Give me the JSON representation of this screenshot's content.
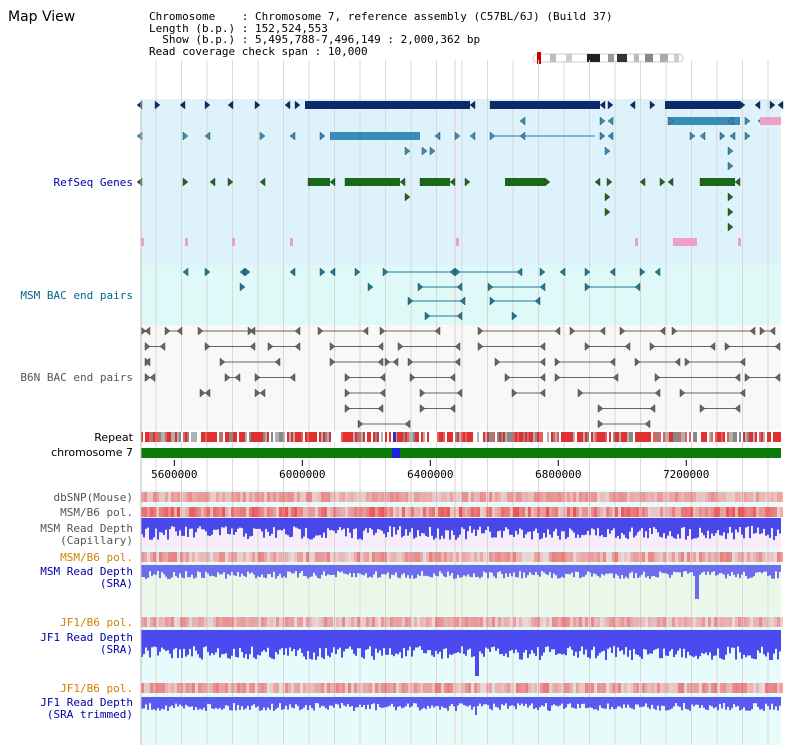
{
  "page": {
    "title": "Map View"
  },
  "info": {
    "chromosome_key": "Chromosome",
    "chromosome_value": "Chromosome 7, reference assembly (C57BL/6J) (Build 37)",
    "length_key": "Length (b.p.)",
    "length_value": "152,524,553",
    "show_key": "  Show (b.p.)",
    "show_value": "5,495,788-7,496,149 : 2,000,362 bp",
    "coverage_key": "Read coverage check span",
    "coverage_value": "10,000"
  },
  "view": {
    "start_bp": 5495788,
    "end_bp": 7496149
  },
  "ruler": {
    "ticks": [
      "5600000",
      "6000000",
      "6400000",
      "6800000",
      "7200000"
    ],
    "tick_values": [
      5600000,
      6000000,
      6400000,
      6800000,
      7200000
    ]
  },
  "tracks": {
    "refseq": {
      "label": "RefSeq Genes",
      "color": "#0000aa"
    },
    "msm_bac": {
      "label": "MSM BAC end pairs",
      "color": "#006688"
    },
    "b6n_bac": {
      "label": "B6N BAC end pairs",
      "color": "#555555"
    },
    "repeat": {
      "label": "Repeat"
    },
    "chromosome": {
      "label": "chromosome 7"
    },
    "dbsnp": {
      "label": "dbSNP(Mouse)"
    },
    "msm_pol1": {
      "label": "MSM/B6 pol."
    },
    "msm_cap": {
      "label_1": "MSM Read Depth",
      "label_2": "(Capillary)"
    },
    "msm_pol2": {
      "label": "MSM/B6 pol."
    },
    "msm_sra": {
      "label_1": "MSM Read Depth",
      "label_2": "(SRA)"
    },
    "jf1_pol1": {
      "label": "JF1/B6 pol."
    },
    "jf1_sra": {
      "label_1": "JF1 Read Depth",
      "label_2": "(SRA)"
    },
    "jf1_pol2": {
      "label": "JF1/B6 pol."
    },
    "jf1_trim": {
      "label_1": "JF1 Read Depth",
      "label_2": "(SRA trimmed)"
    }
  },
  "colors": {
    "refseq_bg": "#ddf2fb",
    "bac_bg": "#dff8f8",
    "b6n_bg": "#f8f8f8",
    "gene_dark": "#0a2a6a",
    "gene_mid": "#3a8cb8",
    "gene_green": "#1a6a1a",
    "gene_pink": "#f0a0c8",
    "msm_bac": "#1a7a9a",
    "b6n_bac": "#666666",
    "chrom_green": "#0a7a0a",
    "depth_blue": "#3a3ae8",
    "pol_red": "#f05050",
    "label_orange": "#d08000",
    "label_blue": "#0000aa"
  }
}
